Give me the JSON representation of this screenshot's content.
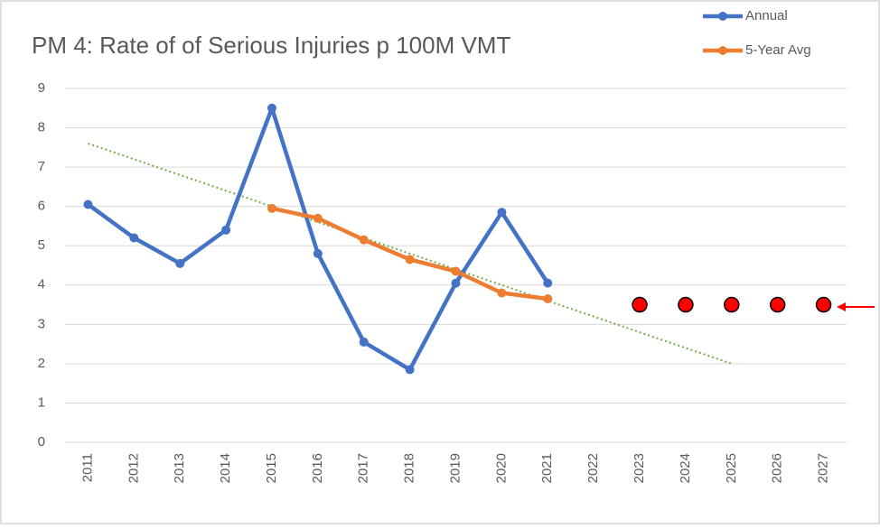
{
  "chart_data": {
    "type": "line",
    "title": "PM 4: Rate of of Serious Injuries p 100M VMT",
    "categories": [
      "2011",
      "2012",
      "2013",
      "2014",
      "2015",
      "2016",
      "2017",
      "2018",
      "2019",
      "2020",
      "2021",
      "2022",
      "2023",
      "2024",
      "2025",
      "2026",
      "2027"
    ],
    "series": [
      {
        "name": "Annual",
        "color": "#4472c4",
        "values": [
          6.05,
          5.2,
          4.55,
          5.4,
          8.5,
          4.8,
          2.55,
          1.85,
          4.05,
          5.85,
          4.05,
          null,
          null,
          null,
          null,
          null,
          null
        ]
      },
      {
        "name": "5-Year Avg",
        "color": "#ed7d31",
        "values": [
          null,
          null,
          null,
          null,
          5.95,
          5.7,
          5.15,
          4.65,
          4.35,
          3.8,
          3.65,
          null,
          null,
          null,
          null,
          null,
          null
        ]
      }
    ],
    "trendline": {
      "color": "#70ad47",
      "values": [
        7.6,
        7.2,
        6.8,
        6.4,
        6.0,
        5.6,
        5.2,
        4.8,
        4.4,
        4.0,
        3.6,
        3.2,
        2.8,
        2.4,
        2.0,
        null,
        null
      ]
    },
    "markers": {
      "color": "#ff0000",
      "values": [
        null,
        null,
        null,
        null,
        null,
        null,
        null,
        null,
        null,
        null,
        null,
        null,
        3.5,
        3.5,
        3.5,
        3.5,
        3.5
      ]
    },
    "ylim": [
      0,
      9
    ],
    "yticks": [
      0,
      1,
      2,
      3,
      4,
      5,
      6,
      7,
      8,
      9
    ],
    "grid": true,
    "legend": "top-right"
  }
}
